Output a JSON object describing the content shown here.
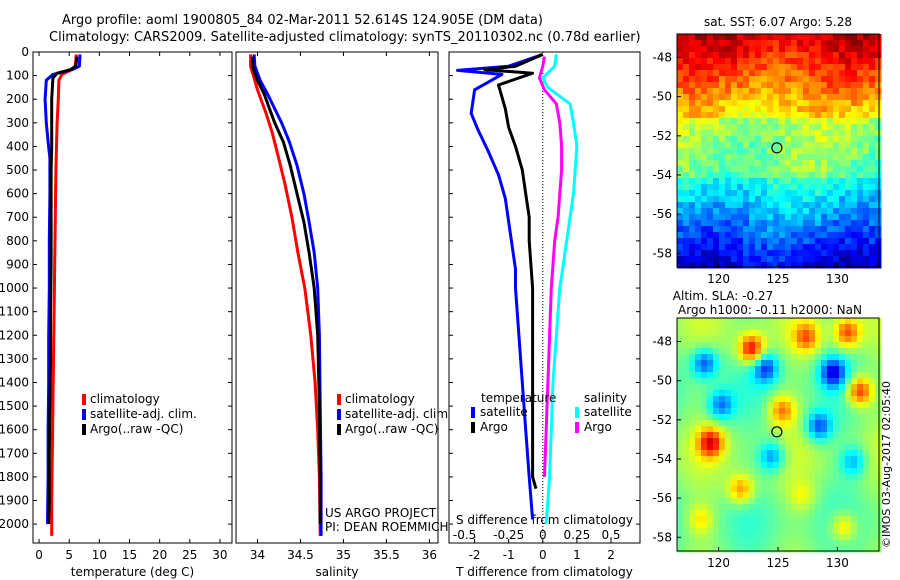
{
  "header": {
    "line1": "Argo profile: aoml 1900805_84 02-Mar-2011 52.614S 124.905E (DM data)",
    "line2": "Climatology: CARS2009. Satellite-adjusted climatology: synTS_20110302.nc (0.78d earlier)"
  },
  "colors": {
    "climatology": "#ff0000",
    "satellite": "#0000ff",
    "argo": "#000000",
    "sat_salinity": "#00ffff",
    "argo_salinity": "#ff00ff"
  },
  "chart_data": [
    {
      "id": "temperature",
      "type": "line",
      "xlabel": "temperature (deg C)",
      "ylabel": "",
      "xlim": [
        -1,
        32
      ],
      "ylim": [
        2080,
        0
      ],
      "xticks": [
        0,
        5,
        10,
        15,
        20,
        25,
        30
      ],
      "yticks": [
        0,
        100,
        200,
        300,
        400,
        500,
        600,
        700,
        800,
        900,
        1000,
        1100,
        1200,
        1300,
        1400,
        1500,
        1600,
        1700,
        1800,
        1900,
        2000
      ],
      "legend": [
        "climatology",
        "satellite-adj. clim.",
        "Argo(..raw -QC)"
      ],
      "series": [
        {
          "name": "climatology",
          "color": "#ff0000",
          "points": [
            [
              6.2,
              10
            ],
            [
              6.0,
              60
            ],
            [
              5.0,
              80
            ],
            [
              3.8,
              95
            ],
            [
              3.3,
              120
            ],
            [
              3.2,
              200
            ],
            [
              3.0,
              300
            ],
            [
              2.9,
              400
            ],
            [
              2.8,
              500
            ],
            [
              2.7,
              700
            ],
            [
              2.6,
              900
            ],
            [
              2.5,
              1100
            ],
            [
              2.4,
              1300
            ],
            [
              2.3,
              1500
            ],
            [
              2.2,
              1700
            ],
            [
              2.1,
              1900
            ],
            [
              2.1,
              2050
            ]
          ]
        },
        {
          "name": "satellite-adj. clim.",
          "color": "#0000ff",
          "points": [
            [
              6.8,
              10
            ],
            [
              6.7,
              60
            ],
            [
              5.5,
              75
            ],
            [
              2.3,
              95
            ],
            [
              1.2,
              120
            ],
            [
              1.0,
              200
            ],
            [
              1.2,
              300
            ],
            [
              1.5,
              380
            ],
            [
              1.8,
              450
            ],
            [
              1.8,
              600
            ],
            [
              1.7,
              800
            ],
            [
              1.7,
              1000
            ],
            [
              1.6,
              1200
            ],
            [
              1.6,
              1400
            ],
            [
              1.5,
              1600
            ],
            [
              1.5,
              1800
            ],
            [
              1.4,
              2000
            ]
          ]
        },
        {
          "name": "Argo(..raw -QC)",
          "color": "#000000",
          "points": [
            [
              6.3,
              20
            ],
            [
              6.1,
              60
            ],
            [
              5.2,
              75
            ],
            [
              3.0,
              90
            ],
            [
              2.3,
              110
            ],
            [
              2.1,
              200
            ],
            [
              2.1,
              300
            ],
            [
              2.1,
              400
            ],
            [
              2.0,
              500
            ],
            [
              2.0,
              700
            ],
            [
              2.0,
              900
            ],
            [
              1.9,
              1100
            ],
            [
              1.9,
              1300
            ],
            [
              1.8,
              1500
            ],
            [
              1.7,
              1700
            ],
            [
              1.7,
              1900
            ],
            [
              1.6,
              2000
            ]
          ]
        }
      ]
    },
    {
      "id": "salinity",
      "type": "line",
      "xlabel": "salinity",
      "ylabel": "",
      "xlim": [
        33.75,
        36.1
      ],
      "ylim": [
        2080,
        0
      ],
      "xticks": [
        34,
        34.5,
        35,
        35.5,
        36
      ],
      "xticklabels": [
        "34",
        "34.5",
        "35",
        "35.5",
        "36"
      ],
      "legend": [
        "climatology",
        "satellite-adj. clim.",
        "Argo(..raw -QC)"
      ],
      "annotation": [
        "US ARGO PROJECT",
        "PI: DEAN ROEMMICH"
      ],
      "series": [
        {
          "name": "climatology",
          "color": "#ff0000",
          "points": [
            [
              33.92,
              10
            ],
            [
              33.92,
              60
            ],
            [
              33.96,
              110
            ],
            [
              34.0,
              160
            ],
            [
              34.04,
              200
            ],
            [
              34.1,
              260
            ],
            [
              34.17,
              340
            ],
            [
              34.24,
              440
            ],
            [
              34.32,
              560
            ],
            [
              34.4,
              700
            ],
            [
              34.47,
              850
            ],
            [
              34.55,
              1000
            ],
            [
              34.62,
              1200
            ],
            [
              34.67,
              1400
            ],
            [
              34.7,
              1600
            ],
            [
              34.72,
              1800
            ],
            [
              34.73,
              2050
            ]
          ]
        },
        {
          "name": "satellite-adj. clim.",
          "color": "#0000ff",
          "points": [
            [
              33.96,
              10
            ],
            [
              33.97,
              60
            ],
            [
              34.03,
              120
            ],
            [
              34.12,
              180
            ],
            [
              34.2,
              240
            ],
            [
              34.28,
              300
            ],
            [
              34.37,
              380
            ],
            [
              34.46,
              480
            ],
            [
              34.54,
              600
            ],
            [
              34.6,
              720
            ],
            [
              34.66,
              850
            ],
            [
              34.7,
              1000
            ],
            [
              34.72,
              1200
            ],
            [
              34.73,
              1500
            ],
            [
              34.74,
              1800
            ],
            [
              34.74,
              2050
            ]
          ]
        },
        {
          "name": "Argo(..raw -QC)",
          "color": "#000000",
          "points": [
            [
              33.94,
              20
            ],
            [
              33.95,
              70
            ],
            [
              34.0,
              120
            ],
            [
              34.08,
              180
            ],
            [
              34.14,
              240
            ],
            [
              34.2,
              300
            ],
            [
              34.3,
              380
            ],
            [
              34.38,
              480
            ],
            [
              34.46,
              600
            ],
            [
              34.54,
              720
            ],
            [
              34.6,
              850
            ],
            [
              34.66,
              1000
            ],
            [
              34.7,
              1200
            ],
            [
              34.72,
              1500
            ],
            [
              34.73,
              1800
            ],
            [
              34.73,
              2000
            ]
          ]
        }
      ]
    },
    {
      "id": "differences",
      "type": "line",
      "xlabel": "T difference from climatology",
      "top_label": "S difference from climatology",
      "xlim": [
        -2.75,
        2.85
      ],
      "ylim": [
        2080,
        0
      ],
      "xticks": [
        -2,
        -1,
        0,
        1,
        2
      ],
      "s_ticklabels": [
        "-0.5",
        "-0.25",
        "0",
        "0.25",
        "0.5"
      ],
      "legend_titles": [
        "temperature",
        "salinity"
      ],
      "legend": [
        "satellite",
        "Argo",
        "satellite",
        "Argo"
      ],
      "series": [
        {
          "name": "satellite",
          "group": "temperature",
          "color": "#0000ff",
          "points": [
            [
              0.0,
              10
            ],
            [
              -1.0,
              60
            ],
            [
              -2.5,
              78
            ],
            [
              -1.2,
              95
            ],
            [
              -2.0,
              160
            ],
            [
              -2.1,
              260
            ],
            [
              -1.9,
              330
            ],
            [
              -1.6,
              420
            ],
            [
              -1.3,
              520
            ],
            [
              -1.1,
              620
            ],
            [
              -1.0,
              720
            ],
            [
              -0.9,
              820
            ],
            [
              -0.8,
              920
            ],
            [
              -0.8,
              1000
            ],
            [
              -0.7,
              1200
            ],
            [
              -0.6,
              1400
            ],
            [
              -0.5,
              1600
            ],
            [
              -0.4,
              1800
            ],
            [
              -0.3,
              1980
            ]
          ]
        },
        {
          "name": "Argo",
          "group": "temperature",
          "color": "#000000",
          "points": [
            [
              0.0,
              10
            ],
            [
              -0.8,
              60
            ],
            [
              -1.7,
              75
            ],
            [
              -0.3,
              90
            ],
            [
              -1.3,
              140
            ],
            [
              -1.1,
              240
            ],
            [
              -1.0,
              320
            ],
            [
              -0.8,
              400
            ],
            [
              -0.6,
              500
            ],
            [
              -0.5,
              600
            ],
            [
              -0.4,
              700
            ],
            [
              -0.4,
              800
            ],
            [
              -0.3,
              1000
            ],
            [
              -0.3,
              1200
            ],
            [
              -0.3,
              1400
            ],
            [
              -0.3,
              1600
            ],
            [
              -0.3,
              1800
            ],
            [
              -0.2,
              1850
            ]
          ]
        },
        {
          "name": "satellite",
          "group": "salinity",
          "color": "#00ffff",
          "points": [
            [
              0.4,
              10
            ],
            [
              0.35,
              60
            ],
            [
              0.0,
              110
            ],
            [
              0.15,
              150
            ],
            [
              0.8,
              220
            ],
            [
              0.9,
              300
            ],
            [
              1.0,
              400
            ],
            [
              0.95,
              500
            ],
            [
              0.9,
              600
            ],
            [
              0.8,
              700
            ],
            [
              0.7,
              800
            ],
            [
              0.6,
              900
            ],
            [
              0.5,
              1000
            ],
            [
              0.4,
              1200
            ],
            [
              0.3,
              1400
            ],
            [
              0.25,
              1600
            ],
            [
              0.2,
              1800
            ],
            [
              0.1,
              2000
            ]
          ]
        },
        {
          "name": "Argo",
          "group": "salinity",
          "color": "#ff00ff",
          "points": [
            [
              0.05,
              20
            ],
            [
              0.0,
              60
            ],
            [
              -0.1,
              110
            ],
            [
              0.05,
              160
            ],
            [
              0.4,
              220
            ],
            [
              0.5,
              300
            ],
            [
              0.55,
              400
            ],
            [
              0.55,
              500
            ],
            [
              0.5,
              600
            ],
            [
              0.45,
              700
            ],
            [
              0.35,
              800
            ],
            [
              0.3,
              900
            ],
            [
              0.25,
              1000
            ],
            [
              0.2,
              1200
            ],
            [
              0.15,
              1400
            ],
            [
              0.1,
              1600
            ],
            [
              0.05,
              1800
            ]
          ]
        }
      ]
    },
    {
      "id": "sst-map",
      "type": "heatmap",
      "title": "sat. SST: 6.07 Argo: 5.28",
      "xlim": [
        116.5,
        133.5
      ],
      "ylim": [
        -58.7,
        -46.8
      ],
      "xticks": [
        120,
        125,
        130
      ],
      "yticks": [
        -48,
        -50,
        -52,
        -54,
        -56,
        -58
      ],
      "marker": [
        124.905,
        -52.614
      ]
    },
    {
      "id": "sla-map",
      "type": "heatmap",
      "title": [
        "Altim. SLA: -0.27",
        "Argo h1000: -0.11 h2000: NaN"
      ],
      "xlim": [
        116.5,
        133.5
      ],
      "ylim": [
        -58.7,
        -46.8
      ],
      "xticks": [
        120,
        125,
        130
      ],
      "yticks": [
        -48,
        -50,
        -52,
        -54,
        -56,
        -58
      ],
      "marker": [
        124.905,
        -52.614
      ]
    }
  ],
  "watermark": "©IMOS 03-Aug-2017 02:05:40"
}
